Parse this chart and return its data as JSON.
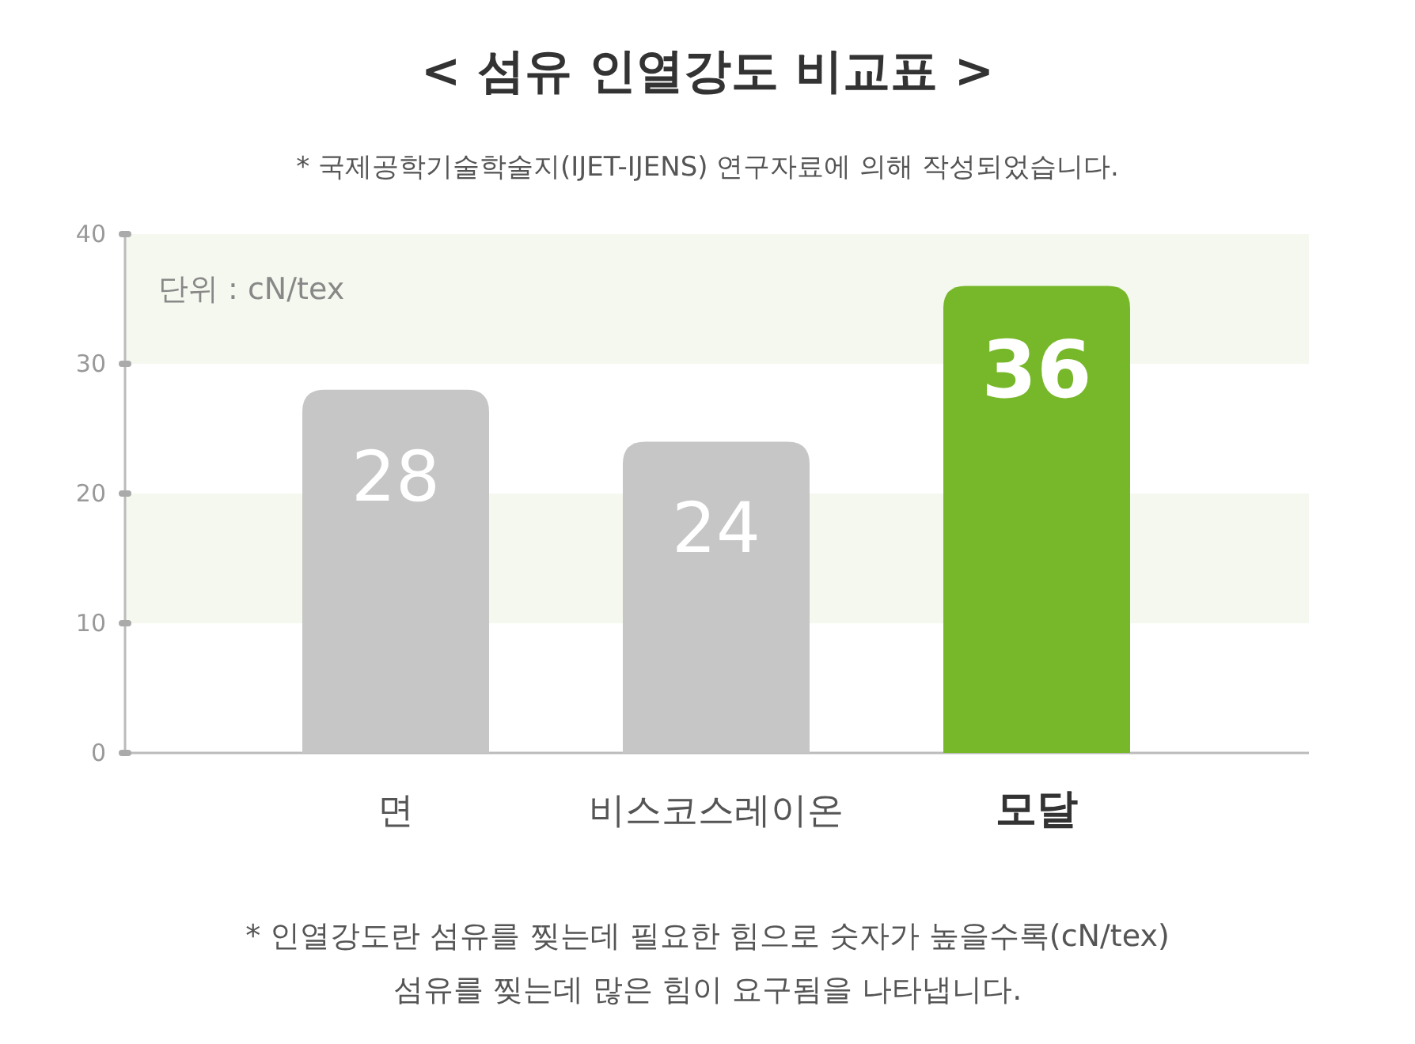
{
  "chart_data": {
    "type": "bar",
    "title": "< 섬유 인열강도 비교표 >",
    "subtitle": "* 국제공학기술학술지(IJET-IJENS) 연구자료에 의해 작성되었습니다.",
    "categories": [
      "면",
      "비스코스레이온",
      "모달"
    ],
    "values": [
      28,
      24,
      36
    ],
    "colors": [
      "#c6c6c6",
      "#c6c6c6",
      "#77b82a"
    ],
    "data_labels": true,
    "ylim": [
      0,
      40
    ],
    "yticks": [
      0,
      10,
      20,
      30,
      40
    ],
    "bands": [
      {
        "axis": "y",
        "from": 10,
        "to": 20,
        "color": "#f5f8ef"
      },
      {
        "axis": "y",
        "from": 30,
        "to": 40,
        "color": "#f5f8ef"
      }
    ],
    "annotations": [
      "단위 : cN/tex",
      "* 인열강도란 섬유를 찢는데 필요한 힘으로 숫자가 높을수록(cN/tex)\n섬유를 찢는데 많은 힘이 요구됨을 나타냅니다."
    ]
  }
}
